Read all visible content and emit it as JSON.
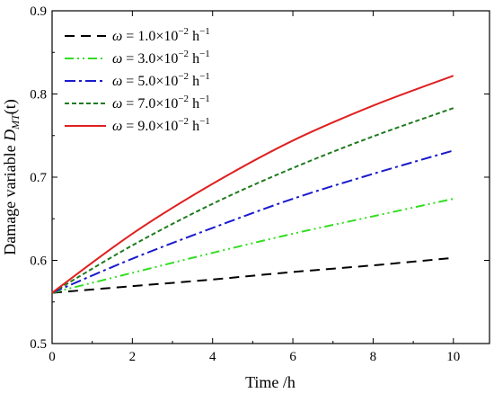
{
  "chart_data": {
    "type": "line",
    "xlabel": "Time /h",
    "ylabel": {
      "main": "Damage variable ",
      "var": "D",
      "sub": "MT",
      "rest": "(t)"
    },
    "xlim": [
      0,
      10.9
    ],
    "ylim": [
      0.5,
      0.9
    ],
    "xticks": [
      0,
      2,
      4,
      6,
      8,
      10
    ],
    "yticks": [
      0.5,
      0.6,
      0.7,
      0.8,
      0.9
    ],
    "xtick_labels": [
      "0",
      "2",
      "4",
      "6",
      "8",
      "10"
    ],
    "ytick_labels": [
      "0.5",
      "0.6",
      "0.7",
      "0.8",
      "0.9"
    ],
    "legend_position": "top-left",
    "grid": false,
    "series": [
      {
        "name": "ω = 1.0×10⁻² h⁻¹",
        "legend": {
          "omega": "ω",
          "value": " = 1.0×10",
          "exp": "−2",
          "unit": " h",
          "unit_exp": "−1"
        },
        "color": "#000000",
        "dash": "dash",
        "x": [
          0,
          2,
          4,
          6,
          8,
          10
        ],
        "values": [
          0.561,
          0.569,
          0.577,
          0.586,
          0.594,
          0.603
        ]
      },
      {
        "name": "ω = 3.0×10⁻² h⁻¹",
        "legend": {
          "omega": "ω",
          "value": " = 3.0×10",
          "exp": "−2",
          "unit": " h",
          "unit_exp": "−1"
        },
        "color": "#33dd22",
        "dash": "dashdotdot",
        "x": [
          0,
          2,
          4,
          6,
          8,
          10
        ],
        "values": [
          0.561,
          0.585,
          0.609,
          0.632,
          0.653,
          0.674
        ]
      },
      {
        "name": "ω = 5.0×10⁻² h⁻¹",
        "legend": {
          "omega": "ω",
          "value": " = 5.0×10",
          "exp": "−2",
          "unit": " h",
          "unit_exp": "−1"
        },
        "color": "#1a1acc",
        "dash": "dashdot",
        "x": [
          0,
          2,
          4,
          6,
          8,
          10
        ],
        "values": [
          0.561,
          0.602,
          0.639,
          0.674,
          0.704,
          0.732
        ]
      },
      {
        "name": "ω = 7.0×10⁻² h⁻¹",
        "legend": {
          "omega": "ω",
          "value": " = 7.0×10",
          "exp": "−2",
          "unit": " h",
          "unit_exp": "−1"
        },
        "color": "#1f7a1f",
        "dash": "shortdash",
        "x": [
          0,
          2,
          4,
          6,
          8,
          10
        ],
        "values": [
          0.561,
          0.618,
          0.668,
          0.711,
          0.749,
          0.783
        ]
      },
      {
        "name": "ω = 9.0×10⁻² h⁻¹",
        "legend": {
          "omega": "ω",
          "value": " = 9.0×10",
          "exp": "−2",
          "unit": " h",
          "unit_exp": "−1"
        },
        "color": "#e02020",
        "dash": "solid",
        "x": [
          0,
          2,
          4,
          6,
          8,
          10
        ],
        "values": [
          0.561,
          0.632,
          0.692,
          0.744,
          0.786,
          0.822
        ]
      }
    ]
  }
}
